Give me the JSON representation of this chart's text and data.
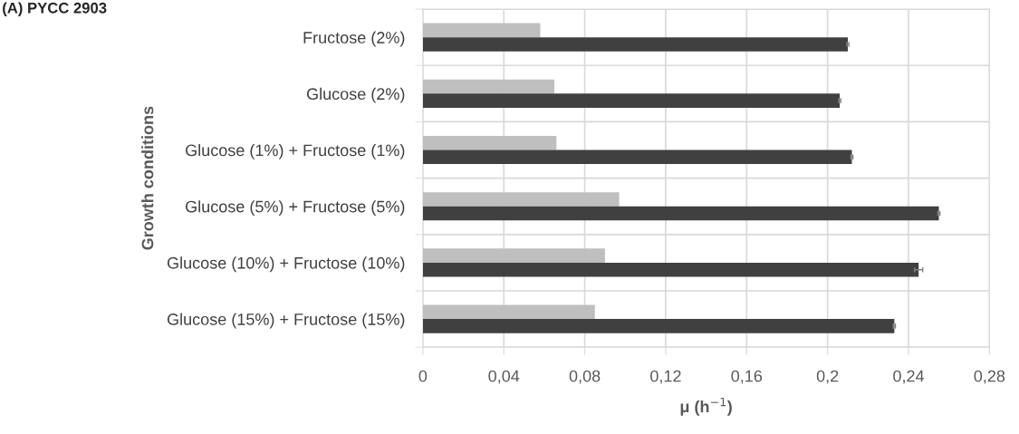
{
  "chart_data": {
    "type": "bar",
    "orientation": "horizontal",
    "title": "(A) PYCC 2903",
    "xlabel": "μ (h$^{−1}$)",
    "ylabel": "Growth conditions",
    "categories": [
      "Fructose (2%)",
      "Glucose (2%)",
      "Glucose (1%) + Fructose (1%)",
      "Glucose (5%) + Fructose (5%)",
      "Glucose (10%) + Fructose (10%)",
      "Glucose (15%) + Fructose (15%)"
    ],
    "series": [
      {
        "color": "#bfbfbf",
        "values": [
          0.058,
          0.065,
          0.066,
          0.097,
          0.09,
          0.085
        ]
      },
      {
        "color": "#404040",
        "values": [
          0.21,
          0.206,
          0.212,
          0.255,
          0.245,
          0.233
        ],
        "errors": [
          0.0005,
          0.0005,
          0.0005,
          0.0005,
          0.002,
          0.0005
        ]
      }
    ],
    "xlim": [
      0,
      0.28
    ],
    "xticks": [
      0,
      {
        "value": 0.04,
        "label": "0,04"
      },
      {
        "value": 0.08,
        "label": "0,08"
      },
      {
        "value": 0.12,
        "label": "0,12"
      },
      {
        "value": 0.16,
        "label": "0,16"
      },
      {
        "value": 0.2,
        "label": "0,2"
      },
      {
        "value": 0.24,
        "label": "0,24"
      },
      {
        "value": 0.28,
        "label": "0,28"
      }
    ],
    "grid": true,
    "legend": false
  }
}
